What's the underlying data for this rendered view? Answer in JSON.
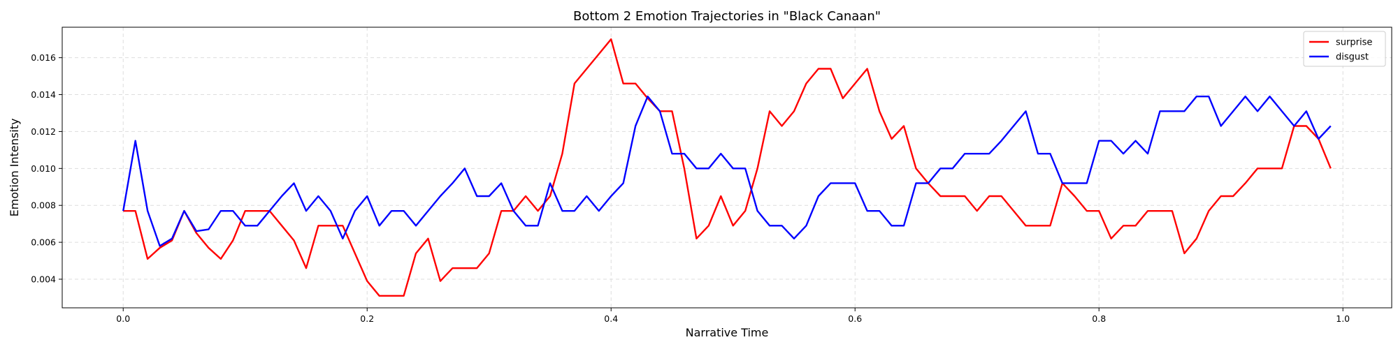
{
  "chart_data": {
    "type": "line",
    "title": "Bottom 2 Emotion Trajectories in \"Black Canaan\"",
    "xlabel": "Narrative Time",
    "ylabel": "Emotion Intensity",
    "xlim": [
      -0.05,
      1.04
    ],
    "ylim": [
      0.00245,
      0.01765
    ],
    "x_ticks": [
      0.0,
      0.2,
      0.4,
      0.6,
      0.8,
      1.0
    ],
    "x_tick_labels": [
      "0.0",
      "0.2",
      "0.4",
      "0.6",
      "0.8",
      "1.0"
    ],
    "y_ticks": [
      0.004,
      0.006,
      0.008,
      0.01,
      0.012,
      0.014,
      0.016
    ],
    "y_tick_labels": [
      "0.004",
      "0.006",
      "0.008",
      "0.010",
      "0.012",
      "0.014",
      "0.016"
    ],
    "grid": true,
    "legend_position": "top-right",
    "x": [
      0.0,
      0.01,
      0.02,
      0.03,
      0.04,
      0.05,
      0.06,
      0.07,
      0.08,
      0.09,
      0.1,
      0.11,
      0.12,
      0.13,
      0.14,
      0.15,
      0.16,
      0.17,
      0.18,
      0.19,
      0.2,
      0.21,
      0.22,
      0.23,
      0.24,
      0.25,
      0.26,
      0.27,
      0.28,
      0.29,
      0.3,
      0.31,
      0.32,
      0.33,
      0.34,
      0.35,
      0.36,
      0.37,
      0.38,
      0.39,
      0.4,
      0.41,
      0.42,
      0.43,
      0.44,
      0.45,
      0.46,
      0.47,
      0.48,
      0.49,
      0.5,
      0.51,
      0.52,
      0.53,
      0.54,
      0.55,
      0.56,
      0.57,
      0.58,
      0.59,
      0.6,
      0.61,
      0.62,
      0.63,
      0.64,
      0.65,
      0.66,
      0.67,
      0.68,
      0.69,
      0.7,
      0.71,
      0.72,
      0.73,
      0.74,
      0.75,
      0.76,
      0.77,
      0.78,
      0.79,
      0.8,
      0.81,
      0.82,
      0.83,
      0.84,
      0.85,
      0.86,
      0.87,
      0.88,
      0.89,
      0.9,
      0.91,
      0.92,
      0.93,
      0.94,
      0.95,
      0.96,
      0.97,
      0.98,
      0.99
    ],
    "series": [
      {
        "name": "surprise",
        "color": "#ff0000",
        "values": [
          0.0077,
          0.0077,
          0.0051,
          0.0057,
          0.0061,
          0.0077,
          0.0065,
          0.0057,
          0.0051,
          0.0061,
          0.0077,
          0.0077,
          0.0077,
          0.0069,
          0.0061,
          0.0046,
          0.0069,
          0.0069,
          0.0069,
          0.0054,
          0.0039,
          0.0031,
          0.0031,
          0.0031,
          0.0054,
          0.0062,
          0.0039,
          0.0046,
          0.0046,
          0.0046,
          0.0054,
          0.0077,
          0.0077,
          0.0085,
          0.0077,
          0.0085,
          0.0108,
          0.0146,
          0.0154,
          0.0162,
          0.017,
          0.0146,
          0.0146,
          0.0138,
          0.0131,
          0.0131,
          0.01,
          0.0062,
          0.0069,
          0.0085,
          0.0069,
          0.0077,
          0.01,
          0.0131,
          0.0123,
          0.0131,
          0.0146,
          0.0154,
          0.0154,
          0.0138,
          0.0146,
          0.0154,
          0.0131,
          0.0116,
          0.0123,
          0.01,
          0.0092,
          0.0085,
          0.0085,
          0.0085,
          0.0077,
          0.0085,
          0.0085,
          0.0077,
          0.0069,
          0.0069,
          0.0069,
          0.0092,
          0.0085,
          0.0077,
          0.0077,
          0.0062,
          0.0069,
          0.0069,
          0.0077,
          0.0077,
          0.0077,
          0.0054,
          0.0062,
          0.0077,
          0.0085,
          0.0085,
          0.0092,
          0.01,
          0.01,
          0.01,
          0.0123,
          0.0123,
          0.0116,
          0.01
        ]
      },
      {
        "name": "disgust",
        "color": "#0000ff",
        "values": [
          0.0077,
          0.0115,
          0.0077,
          0.0058,
          0.0062,
          0.0077,
          0.0066,
          0.0067,
          0.0077,
          0.0077,
          0.0069,
          0.0069,
          0.0077,
          0.0085,
          0.0092,
          0.0077,
          0.0085,
          0.0077,
          0.0062,
          0.0077,
          0.0085,
          0.0069,
          0.0077,
          0.0077,
          0.0069,
          0.0077,
          0.0085,
          0.0092,
          0.01,
          0.0085,
          0.0085,
          0.0092,
          0.0077,
          0.0069,
          0.0069,
          0.0092,
          0.0077,
          0.0077,
          0.0085,
          0.0077,
          0.0085,
          0.0092,
          0.0123,
          0.0139,
          0.0131,
          0.0108,
          0.0108,
          0.01,
          0.01,
          0.0108,
          0.01,
          0.01,
          0.0077,
          0.0069,
          0.0069,
          0.0062,
          0.0069,
          0.0085,
          0.0092,
          0.0092,
          0.0092,
          0.0077,
          0.0077,
          0.0069,
          0.0069,
          0.0092,
          0.0092,
          0.01,
          0.01,
          0.0108,
          0.0108,
          0.0108,
          0.0115,
          0.0123,
          0.0131,
          0.0108,
          0.0108,
          0.0092,
          0.0092,
          0.0092,
          0.0115,
          0.0115,
          0.0108,
          0.0115,
          0.0108,
          0.0131,
          0.0131,
          0.0131,
          0.0139,
          0.0139,
          0.0123,
          0.0131,
          0.0139,
          0.0131,
          0.0139,
          0.0131,
          0.0123,
          0.0131,
          0.0116,
          0.0123
        ]
      }
    ]
  }
}
